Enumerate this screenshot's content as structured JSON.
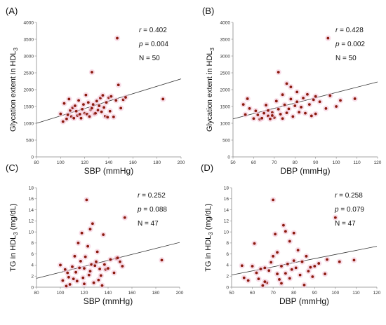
{
  "chart_data": [
    {
      "type": "scatter",
      "panel_label": "(A)",
      "xlabel": "SBP (mmHg)",
      "ylabel_prefix": "Glycation extent in HDL",
      "ylabel_sub": "3",
      "xlim": [
        80,
        200
      ],
      "ylim": [
        0,
        4000
      ],
      "xticks": [
        80,
        100,
        120,
        140,
        160,
        180,
        200
      ],
      "yticks": [
        0,
        500,
        1000,
        1500,
        2000,
        2500,
        3000,
        3500,
        4000
      ],
      "stats": {
        "r_label": "r",
        "r_value": "= 0.402",
        "p_label": "p",
        "p_value": "= 0.004",
        "n_text": "N = 50"
      },
      "trendline": [
        [
          80,
          1000
        ],
        [
          200,
          2320
        ]
      ],
      "points": [
        [
          100,
          1280
        ],
        [
          102,
          1050
        ],
        [
          103,
          1590
        ],
        [
          105,
          1130
        ],
        [
          106,
          1250
        ],
        [
          107,
          1720
        ],
        [
          108,
          1380
        ],
        [
          109,
          1200
        ],
        [
          110,
          1460
        ],
        [
          111,
          1150
        ],
        [
          112,
          1520
        ],
        [
          113,
          1360
        ],
        [
          114,
          1230
        ],
        [
          115,
          1680
        ],
        [
          116,
          1270
        ],
        [
          117,
          1150
        ],
        [
          118,
          1420
        ],
        [
          119,
          1560
        ],
        [
          120,
          1300
        ],
        [
          121,
          1840
        ],
        [
          122,
          1270
        ],
        [
          123,
          1620
        ],
        [
          124,
          1200
        ],
        [
          125,
          1400
        ],
        [
          126,
          1450
        ],
        [
          127,
          1560
        ],
        [
          128,
          1280
        ],
        [
          129,
          1300
        ],
        [
          130,
          1660
        ],
        [
          131,
          1390
        ],
        [
          132,
          1520
        ],
        [
          133,
          1750
        ],
        [
          134,
          1340
        ],
        [
          135,
          1830
        ],
        [
          136,
          1470
        ],
        [
          137,
          1210
        ],
        [
          138,
          1620
        ],
        [
          139,
          1180
        ],
        [
          140,
          1760
        ],
        [
          141,
          1360
        ],
        [
          142,
          1800
        ],
        [
          144,
          1190
        ],
        [
          146,
          1680
        ],
        [
          147,
          3530
        ],
        [
          148,
          2140
        ],
        [
          150,
          1450
        ],
        [
          152,
          1700
        ],
        [
          154,
          1770
        ],
        [
          185,
          1720
        ],
        [
          126,
          2520
        ]
      ]
    },
    {
      "type": "scatter",
      "panel_label": "(B)",
      "xlabel": "DBP (mmHg)",
      "ylabel_prefix": "Glycation extent in HDL",
      "ylabel_sub": "3",
      "xlim": [
        50,
        120
      ],
      "ylim": [
        0,
        4000
      ],
      "xticks": [
        50,
        60,
        70,
        80,
        90,
        100,
        110,
        120
      ],
      "yticks": [
        0,
        500,
        1000,
        1500,
        2000,
        2500,
        3000,
        3500,
        4000
      ],
      "stats": {
        "r_label": "r",
        "r_value": "= 0.428",
        "p_label": "p",
        "p_value": "= 0.002",
        "n_text": "N = 50"
      },
      "trendline": [
        [
          50,
          1130
        ],
        [
          120,
          2230
        ]
      ],
      "points": [
        [
          55,
          1560
        ],
        [
          56,
          1260
        ],
        [
          57,
          1730
        ],
        [
          58,
          1440
        ],
        [
          60,
          1140
        ],
        [
          61,
          1370
        ],
        [
          62,
          1250
        ],
        [
          63,
          1120
        ],
        [
          64,
          1150
        ],
        [
          65,
          1300
        ],
        [
          66,
          1540
        ],
        [
          67,
          1220
        ],
        [
          68,
          1130
        ],
        [
          69,
          1320
        ],
        [
          70,
          1170
        ],
        [
          71,
          1660
        ],
        [
          72,
          1420
        ],
        [
          72,
          2520
        ],
        [
          73,
          1270
        ],
        [
          74,
          1850
        ],
        [
          75,
          1550
        ],
        [
          76,
          1310
        ],
        [
          76,
          2180
        ],
        [
          77,
          1430
        ],
        [
          78,
          1720
        ],
        [
          78,
          2080
        ],
        [
          79,
          1200
        ],
        [
          80,
          1520
        ],
        [
          81,
          1640
        ],
        [
          82,
          1330
        ],
        [
          83,
          1480
        ],
        [
          84,
          1750
        ],
        [
          85,
          1300
        ],
        [
          86,
          1860
        ],
        [
          87,
          1560
        ],
        [
          88,
          1220
        ],
        [
          89,
          1700
        ],
        [
          90,
          1800
        ],
        [
          90,
          1280
        ],
        [
          92,
          1640
        ],
        [
          95,
          1440
        ],
        [
          96,
          3530
        ],
        [
          97,
          1820
        ],
        [
          100,
          1500
        ],
        [
          102,
          1680
        ],
        [
          109,
          1730
        ],
        [
          69,
          1230
        ],
        [
          74,
          1140
        ],
        [
          81,
          1930
        ],
        [
          67,
          1380
        ]
      ]
    },
    {
      "type": "scatter",
      "panel_label": "(C)",
      "xlabel": "SBP (mmHg)",
      "ylabel_prefix": "TG in HDL",
      "ylabel_sub": "3",
      "ylabel_suffix": " (mg/dL)",
      "xlim": [
        80,
        200
      ],
      "ylim": [
        0,
        18
      ],
      "xticks": [
        80,
        100,
        120,
        140,
        160,
        180,
        200
      ],
      "yticks": [
        0,
        2,
        4,
        6,
        8,
        10,
        12,
        14,
        16,
        18
      ],
      "stats": {
        "r_label": "r",
        "r_value": "= 0.252",
        "p_label": "p",
        "p_value": "= 0.088",
        "n_text": "N = 47"
      },
      "trendline": [
        [
          80,
          1.6
        ],
        [
          200,
          8.1
        ]
      ],
      "points": [
        [
          100,
          4.0
        ],
        [
          102,
          1.2
        ],
        [
          104,
          3.2
        ],
        [
          105,
          0.2
        ],
        [
          106,
          2.6
        ],
        [
          107,
          1.8
        ],
        [
          108,
          0.5
        ],
        [
          110,
          3.7
        ],
        [
          111,
          1.5
        ],
        [
          112,
          5.6
        ],
        [
          113,
          2.7
        ],
        [
          114,
          1.1
        ],
        [
          115,
          8.0
        ],
        [
          116,
          3.5
        ],
        [
          117,
          4.7
        ],
        [
          118,
          9.8
        ],
        [
          119,
          1.7
        ],
        [
          120,
          3.4
        ],
        [
          121,
          5.5
        ],
        [
          122,
          15.8
        ],
        [
          123,
          7.4
        ],
        [
          124,
          2.2
        ],
        [
          125,
          10.5
        ],
        [
          126,
          4.1
        ],
        [
          127,
          11.5
        ],
        [
          128,
          0.8
        ],
        [
          129,
          3.9
        ],
        [
          130,
          4.6
        ],
        [
          131,
          6.4
        ],
        [
          132,
          1.3
        ],
        [
          133,
          3.3
        ],
        [
          134,
          2.1
        ],
        [
          135,
          0.3
        ],
        [
          136,
          9.5
        ],
        [
          137,
          4.1
        ],
        [
          138,
          3.2
        ],
        [
          140,
          3.4
        ],
        [
          142,
          5.0
        ],
        [
          145,
          2.6
        ],
        [
          147,
          5.2
        ],
        [
          148,
          5.3
        ],
        [
          150,
          4.6
        ],
        [
          152,
          3.8
        ],
        [
          154,
          12.6
        ],
        [
          185,
          4.9
        ],
        [
          120,
          0.6
        ],
        [
          125,
          2.9
        ]
      ]
    },
    {
      "type": "scatter",
      "panel_label": "(D)",
      "xlabel": "DBP (mmHg)",
      "ylabel_prefix": "TG in HDL",
      "ylabel_sub": "3",
      "ylabel_suffix": " (mg/dL)",
      "xlim": [
        50,
        120
      ],
      "ylim": [
        0,
        18
      ],
      "xticks": [
        50,
        60,
        70,
        80,
        90,
        100,
        110,
        120
      ],
      "yticks": [
        0,
        2,
        4,
        6,
        8,
        10,
        12,
        14,
        16,
        18
      ],
      "stats": {
        "r_label": "r",
        "r_value": "= 0.258",
        "p_label": "p",
        "p_value": "= 0.079",
        "n_text": "N = 47"
      },
      "trendline": [
        [
          50,
          2.2
        ],
        [
          120,
          7.4
        ]
      ],
      "points": [
        [
          55,
          3.9
        ],
        [
          56,
          1.7
        ],
        [
          58,
          1.2
        ],
        [
          60,
          3.8
        ],
        [
          61,
          7.9
        ],
        [
          62,
          2.6
        ],
        [
          63,
          1.5
        ],
        [
          64,
          3.3
        ],
        [
          65,
          0.3
        ],
        [
          66,
          3.5
        ],
        [
          67,
          0.8
        ],
        [
          68,
          3.0
        ],
        [
          69,
          4.5
        ],
        [
          70,
          5.6
        ],
        [
          70,
          15.8
        ],
        [
          71,
          9.6
        ],
        [
          72,
          2.4
        ],
        [
          72,
          6.3
        ],
        [
          73,
          1.4
        ],
        [
          74,
          3.8
        ],
        [
          75,
          11.2
        ],
        [
          76,
          2.5
        ],
        [
          76,
          10.1
        ],
        [
          77,
          4.2
        ],
        [
          78,
          1.6
        ],
        [
          78,
          8.3
        ],
        [
          79,
          3.2
        ],
        [
          80,
          4.8
        ],
        [
          80,
          9.8
        ],
        [
          81,
          3.5
        ],
        [
          82,
          6.7
        ],
        [
          83,
          2.2
        ],
        [
          84,
          4.6
        ],
        [
          85,
          0.4
        ],
        [
          86,
          5.6
        ],
        [
          87,
          2.9
        ],
        [
          88,
          3.6
        ],
        [
          89,
          1.9
        ],
        [
          90,
          3.8
        ],
        [
          92,
          4.3
        ],
        [
          95,
          2.4
        ],
        [
          96,
          5.0
        ],
        [
          100,
          12.6
        ],
        [
          102,
          4.6
        ],
        [
          109,
          4.9
        ],
        [
          66,
          1.0
        ],
        [
          74,
          0.7
        ]
      ]
    }
  ]
}
